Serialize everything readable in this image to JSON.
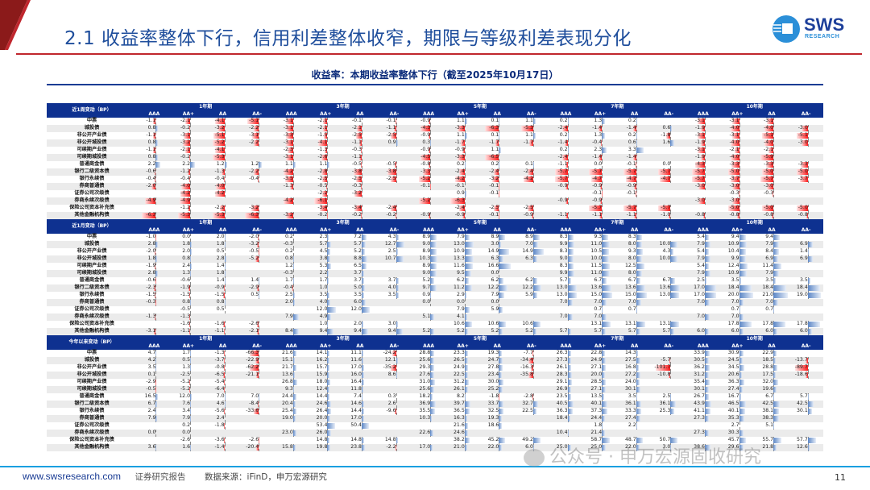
{
  "header": {
    "title": "2.1 收益率整体下行，信用利差整体收窄，期限与等级利差表现分化",
    "logo_text": "SWS",
    "logo_sub": "RESEARCH"
  },
  "subtitle": "收益率：本期收益率整体下行（截至2025年10月17日）",
  "tenors": [
    "1年期",
    "3年期",
    "5年期",
    "7年期",
    "10年期"
  ],
  "grades": [
    "AAA",
    "AA+",
    "AA",
    "AA-"
  ],
  "row_labels": [
    "中票",
    "城投债",
    "非公开产业债",
    "非公开城投债",
    "可续期产业债",
    "可续期城投债",
    "普通商金债",
    "银行二级资本债",
    "银行永续债",
    "券商普通债",
    "证券公司次级债",
    "券商永续次级债",
    "保险公司资本补充债",
    "其他金融机构债"
  ],
  "colors": {
    "negative": "#ff1a1a",
    "positive": "#5b86c6",
    "header": "#0e3190",
    "title": "#1f4e9c"
  },
  "panels": [
    {
      "title": "近1周变动（BP）",
      "values_by_column": [
        [
          -1.1,
          0.8,
          -1.1,
          0.8,
          -1.1,
          0.8,
          2.2,
          -0.6,
          -0.4,
          -2.0,
          null,
          -4.9,
          null,
          -6.3
        ],
        [
          -2.1,
          -0.2,
          -3.1,
          -3.2,
          -2.1,
          -0.2,
          2.2,
          -1.2,
          -0.4,
          -4.0,
          -4.2,
          -4.9,
          -1.2,
          -5.3
        ],
        [
          -4.1,
          -3.2,
          -5.1,
          -5.2,
          -4.1,
          -5.3,
          1.2,
          -1.3,
          -0.4,
          -4.0,
          -4.2,
          null,
          -2.2,
          -5.3
        ],
        [
          -5.1,
          -2.2,
          -3.1,
          -2.2,
          null,
          null,
          1.2,
          -2.2,
          -0.4,
          null,
          null,
          null,
          -3.2,
          -6.3
        ],
        [
          -3.1,
          -3.1,
          -3.3,
          -3.1,
          -2.3,
          -3.1,
          1.1,
          -4.2,
          -3.5,
          -1.3,
          null,
          -4.2,
          null,
          -3.2
        ],
        [
          -2.1,
          -2.1,
          -1.5,
          -4.1,
          -1.3,
          -2.6,
          1.1,
          -2.8,
          -2.5,
          -0.5,
          -2.2,
          -6.1,
          -3.4,
          -0.2
        ],
        [
          -0.1,
          -2.1,
          -2.5,
          -1.1,
          -0.3,
          -1.1,
          -0.5,
          -3.8,
          -2.5,
          -0.3,
          -3.2,
          null,
          -3.4,
          -0.2
        ],
        [
          -0.1,
          -1.1,
          -2.5,
          0.9,
          null,
          null,
          -0.5,
          -3.8,
          -2.5,
          null,
          null,
          null,
          -2.4,
          -0.2
        ],
        [
          -0.9,
          -4.3,
          -0.9,
          0.3,
          -0.9,
          -4.5,
          -0.8,
          -3.3,
          -5.2,
          -0.1,
          null,
          -5.2,
          null,
          -0.9
        ],
        [
          1.1,
          -3.3,
          1.1,
          -1.7,
          -0.9,
          -3.3,
          0.2,
          -2.4,
          -4.2,
          -0.1,
          0.9,
          -6.3,
          -2.4,
          -0.9
        ],
        [
          0.1,
          -6.3,
          0.1,
          -1.7,
          1.1,
          -6.5,
          0.2,
          -2.4,
          -3.2,
          -0.1,
          -0.1,
          null,
          -2.5,
          -0.1
        ],
        [
          1.1,
          -5.3,
          1.1,
          -1.7,
          null,
          null,
          0.1,
          -2.4,
          -4.2,
          null,
          null,
          null,
          -2.5,
          -0.9
        ],
        [
          0.2,
          -2.4,
          0.2,
          -1.4,
          0.2,
          -2.4,
          -1.1,
          -5.7,
          -5.7,
          -0.9,
          null,
          -0.9,
          null,
          -1.1
        ],
        [
          1.3,
          -1.4,
          1.3,
          -0.4,
          2.3,
          -1.4,
          0.0,
          -5.7,
          -4.7,
          -0.9,
          -0.1,
          -0.9,
          -5.7,
          -1.1
        ],
        [
          0.2,
          -1.4,
          0.2,
          0.6,
          3.3,
          -1.4,
          -0.1,
          -5.7,
          -4.7,
          -0.9,
          -0.1,
          null,
          -5.7,
          -1.1
        ],
        [
          null,
          0.6,
          -1.8,
          1.6,
          null,
          null,
          0.0,
          -5.7,
          -4.7,
          null,
          null,
          null,
          -5.7,
          -1.0
        ],
        [
          -3.1,
          -1.9,
          -3.1,
          -1.9,
          -3.1,
          -1.9,
          -4.3,
          -5.7,
          -5.7,
          -3.0,
          null,
          -3.0,
          null,
          -0.8
        ],
        [
          -3.1,
          -4.0,
          -3.1,
          -4.0,
          -2.1,
          -4.0,
          -3.3,
          -5.0,
          -3.7,
          -3.0,
          -0.3,
          -3.0,
          -5.0,
          -0.8
        ],
        [
          -3.1,
          -4.0,
          -5.1,
          -4.0,
          -2.1,
          -5.9,
          -3.3,
          -5.0,
          -5.7,
          -3.0,
          -0.3,
          null,
          -5.0,
          -0.8
        ],
        [
          null,
          -3.0,
          -5.1,
          -3.0,
          null,
          null,
          -3.3,
          -5.0,
          -3.7,
          null,
          null,
          null,
          -5.0,
          -0.8
        ]
      ]
    },
    {
      "title": "近1月变动（BP）",
      "values_by_column": [
        [
          -1.0,
          2.8,
          -2.0,
          1.8,
          -1.9,
          2.8,
          -0.6,
          -2.3,
          -1.5,
          -0.3,
          null,
          -1.3,
          null,
          -3.1
        ],
        [
          0.0,
          1.8,
          2.0,
          0.8,
          2.4,
          1.3,
          -0.6,
          -1.9,
          -1.5,
          0.8,
          -0.5,
          -1.3,
          -1.6,
          -1.1
        ],
        [
          2.0,
          1.8,
          0.5,
          2.8,
          1.4,
          1.8,
          1.4,
          -0.9,
          -1.5,
          0.8,
          0.5,
          null,
          -1.6,
          -1.1
        ],
        [
          -2.0,
          -3.2,
          -0.5,
          -5.2,
          null,
          null,
          1.4,
          -2.9,
          0.5,
          null,
          null,
          null,
          -2.6,
          -2.1
        ],
        [
          0.2,
          -0.3,
          0.2,
          0.8,
          1.2,
          -0.3,
          1.7,
          -0.4,
          2.5,
          2.0,
          null,
          7.9,
          null,
          8.4
        ],
        [
          2.3,
          5.7,
          4.5,
          3.8,
          5.3,
          2.2,
          1.7,
          1.0,
          3.5,
          4.0,
          12.0,
          4.9,
          1.0,
          9.4
        ],
        [
          7.2,
          5.7,
          5.2,
          8.8,
          6.5,
          3.7,
          3.7,
          5.0,
          3.5,
          6.0,
          12.0,
          null,
          2.0,
          9.4
        ],
        [
          4.3,
          12.7,
          2.5,
          10.7,
          null,
          null,
          3.7,
          4.0,
          3.5,
          null,
          null,
          null,
          3.0,
          9.4
        ],
        [
          8.9,
          9.0,
          8.9,
          10.3,
          8.9,
          9.0,
          5.2,
          9.7,
          0.9,
          0.0,
          null,
          5.1,
          null,
          5.2
        ],
        [
          7.9,
          13.0,
          10.9,
          13.3,
          11.6,
          9.5,
          6.2,
          11.2,
          2.9,
          0.0,
          7.9,
          4.1,
          10.6,
          5.2
        ],
        [
          8.9,
          3.0,
          14.9,
          6.3,
          16.6,
          0.0,
          6.2,
          12.2,
          7.9,
          0.0,
          5.9,
          null,
          10.6,
          5.2
        ],
        [
          8.9,
          7.0,
          14.9,
          6.3,
          null,
          null,
          6.2,
          12.2,
          5.9,
          null,
          null,
          null,
          10.6,
          5.2
        ],
        [
          8.3,
          9.9,
          8.3,
          9.0,
          8.3,
          9.9,
          5.7,
          13.0,
          13.0,
          7.0,
          null,
          7.0,
          null,
          5.7
        ],
        [
          9.3,
          11.0,
          10.5,
          10.0,
          11.5,
          11.0,
          6.7,
          13.6,
          15.0,
          7.0,
          0.7,
          7.0,
          13.1,
          5.7
        ],
        [
          8.3,
          8.0,
          9.3,
          8.0,
          12.5,
          8.0,
          6.7,
          13.6,
          15.0,
          7.0,
          0.7,
          null,
          13.1,
          5.7
        ],
        [
          null,
          10.0,
          4.3,
          10.0,
          null,
          null,
          6.7,
          13.6,
          13.0,
          null,
          null,
          null,
          13.1,
          5.7
        ],
        [
          5.4,
          7.9,
          5.4,
          7.9,
          5.4,
          7.9,
          2.5,
          17.0,
          17.0,
          7.0,
          null,
          7.0,
          null,
          6.0
        ],
        [
          9.4,
          10.9,
          10.4,
          9.9,
          12.4,
          10.9,
          3.5,
          18.4,
          20.0,
          7.0,
          0.7,
          7.0,
          17.8,
          6.0
        ],
        [
          9.4,
          7.9,
          8.4,
          6.9,
          11.4,
          7.9,
          3.5,
          18.4,
          21.0,
          7.0,
          0.7,
          null,
          17.8,
          6.0
        ],
        [
          null,
          6.9,
          1.4,
          6.9,
          null,
          null,
          3.5,
          18.4,
          19.0,
          null,
          null,
          null,
          17.8,
          6.0
        ]
      ]
    },
    {
      "title": "今年以来变动（BP）",
      "values_by_column": [
        [
          4.7,
          4.2,
          3.5,
          0.1,
          -2.9,
          -0.5,
          16.5,
          6.7,
          2.4,
          7.9,
          null,
          0.0,
          null,
          3.6
        ],
        [
          1.7,
          0.5,
          1.3,
          -2.5,
          -5.2,
          -5.2,
          12.0,
          7.6,
          3.4,
          7.9,
          0.2,
          0.0,
          -2.6,
          1.6
        ],
        [
          -1.3,
          -3.7,
          -0.8,
          -6.5,
          -5.4,
          -6.4,
          7.0,
          4.6,
          -5.6,
          2.4,
          -1.8,
          null,
          -3.6,
          -1.4
        ],
        [
          -66.3,
          -22.9,
          -62.2,
          -21.1,
          null,
          null,
          7.0,
          -8.4,
          -33.6,
          null,
          null,
          null,
          -2.6,
          -20.4
        ],
        [
          21.6,
          15.1,
          21.7,
          13.6,
          26.8,
          9.3,
          24.4,
          20.4,
          25.4,
          19.0,
          null,
          23.0,
          null,
          15.8
        ],
        [
          14.1,
          16.2,
          15.7,
          15.9,
          18.0,
          12.4,
          14.4,
          24.6,
          26.4,
          20.0,
          53.4,
          26.0,
          14.8,
          19.8
        ],
        [
          11.1,
          11.6,
          17.0,
          16.0,
          16.4,
          11.8,
          7.4,
          14.6,
          14.4,
          17.0,
          50.4,
          null,
          14.8,
          23.8
        ],
        [
          -24.2,
          12.1,
          -35.2,
          8.6,
          null,
          null,
          0.3,
          2.6,
          -9.6,
          null,
          null,
          null,
          14.8,
          -2.2
        ],
        [
          28.8,
          25.6,
          29.3,
          27.6,
          31.0,
          25.6,
          18.2,
          36.9,
          35.5,
          10.3,
          null,
          22.6,
          null,
          17.0
        ],
        [
          23.3,
          26.5,
          24.9,
          22.5,
          31.2,
          26.1,
          8.2,
          39.7,
          36.5,
          16.3,
          21.6,
          24.6,
          38.2,
          21.0
        ],
        [
          19.3,
          24.7,
          27.8,
          23.4,
          30.0,
          25.2,
          -1.8,
          33.7,
          32.5,
          19.3,
          18.6,
          null,
          45.2,
          22.0
        ],
        [
          -7.7,
          -34.4,
          -16.3,
          -35.8,
          null,
          null,
          -2.8,
          32.7,
          22.5,
          null,
          null,
          null,
          49.2,
          6.0
        ],
        [
          26.3,
          27.3,
          26.1,
          28.3,
          29.1,
          26.9,
          23.5,
          40.5,
          36.3,
          18.4,
          null,
          10.4,
          null,
          25.0
        ],
        [
          22.8,
          24.9,
          27.1,
          20.0,
          28.5,
          27.1,
          13.5,
          40.1,
          37.3,
          24.4,
          1.8,
          21.4,
          58.7,
          25.0
        ],
        [
          14.3,
          27.5,
          16.8,
          27.2,
          24.0,
          30.1,
          3.5,
          36.1,
          33.3,
          27.4,
          2.2,
          null,
          48.7,
          22.0
        ],
        [
          null,
          -5.7,
          -101.7,
          -10.8,
          null,
          null,
          2.5,
          36.1,
          25.3,
          null,
          null,
          null,
          50.7,
          3.0
        ],
        [
          33.9,
          30.5,
          36.2,
          31.2,
          35.4,
          30.1,
          26.7,
          43.9,
          41.1,
          27.3,
          null,
          27.3,
          null,
          38.6
        ],
        [
          30.9,
          24.5,
          34.5,
          20.6,
          36.3,
          27.4,
          16.7,
          46.5,
          40.1,
          35.3,
          2.7,
          30.3,
          45.7,
          29.6
        ],
        [
          22.9,
          18.5,
          28.8,
          17.5,
          32.0,
          19.6,
          6.7,
          42.5,
          38.1,
          38.3,
          5.1,
          null,
          55.7,
          21.8
        ],
        [
          null,
          -13.7,
          -89.7,
          -18.6,
          null,
          null,
          5.7,
          42.5,
          30.1,
          null,
          null,
          null,
          57.7,
          12.6
        ]
      ]
    }
  ],
  "watermark": "公众号 · 申万宏源固收研究",
  "footer": {
    "url": "www.swsresearch.com",
    "label": "证券研究报告",
    "source": "数据来源：iFinD，申万宏源研究",
    "page": "11"
  }
}
